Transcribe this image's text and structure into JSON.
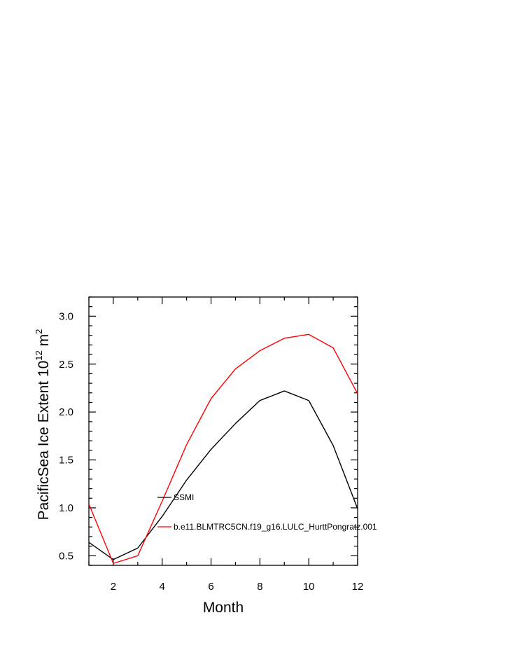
{
  "chart_data": {
    "type": "line",
    "title": "",
    "xlabel": "Month",
    "ylabel": {
      "prefix": "PacificSea Ice Extent 10",
      "exponent1": "12",
      "middle": " m",
      "exponent2": "2"
    },
    "xlim": [
      1,
      12
    ],
    "ylim": [
      0.4,
      3.2
    ],
    "x_ticks": [
      2,
      4,
      6,
      8,
      10,
      12
    ],
    "x_tick_labels": [
      "2",
      "4",
      "6",
      "8",
      "10",
      "12"
    ],
    "y_ticks": [
      0.5,
      1.0,
      1.5,
      2.0,
      2.5,
      3.0
    ],
    "y_tick_labels": [
      "0.5",
      "1.0",
      "1.5",
      "2.0",
      "2.5",
      "3.0"
    ],
    "x": [
      1,
      2,
      3,
      4,
      5,
      6,
      7,
      8,
      9,
      10,
      11,
      12
    ],
    "series": [
      {
        "name": "SSMI",
        "color": "#000000",
        "values": [
          0.64,
          0.46,
          0.58,
          0.91,
          1.29,
          1.61,
          1.88,
          2.12,
          2.22,
          2.12,
          1.65,
          0.99
        ]
      },
      {
        "name": "b.e11.BLMTRC5CN.f19_g16.LULC_HurttPongratz.001",
        "color": "#ff0000",
        "values": [
          1.04,
          0.42,
          0.5,
          1.07,
          1.66,
          2.14,
          2.45,
          2.64,
          2.77,
          2.81,
          2.67,
          2.19
        ]
      }
    ],
    "legend": [
      "SSMI",
      "b.e11.BLMTRC5CN.f19_g16.LULC_HurttPongratz.001"
    ],
    "legend_position": "center-left inside plot",
    "grid": false
  }
}
